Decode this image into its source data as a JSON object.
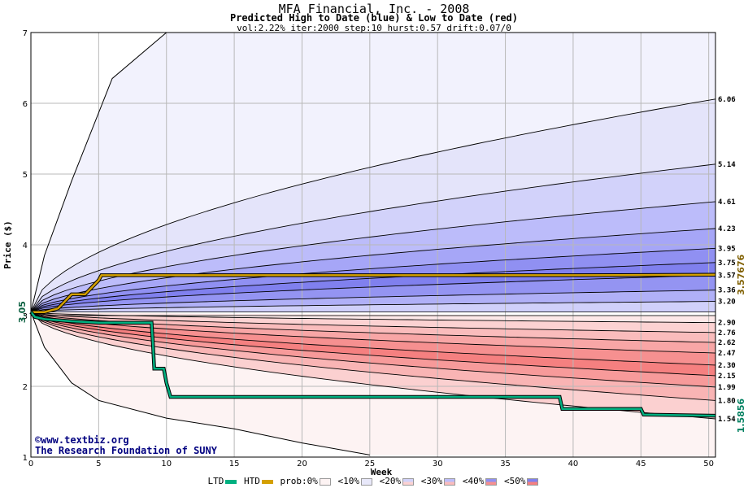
{
  "titles": {
    "main": "MFA Financial, Inc. - 2008",
    "sub": "Predicted High to Date (blue) &  Low to Date (red)",
    "params": "vol:2.22% iter:2000 step:10 hurst:0.57 drift:0.07/0"
  },
  "credits": {
    "line1": "©www.textbiz.org",
    "line2": "The Research Foundation of SUNY"
  },
  "legend": {
    "ltd": "LTD",
    "htd": "HTD",
    "prob": "prob:0%",
    "p10": "<10%",
    "p20": "<20%",
    "p30": "<30%",
    "p40": "<40%",
    "p50": "<50%"
  },
  "chart_data": {
    "type": "area",
    "title": "MFA Financial, Inc. - 2008",
    "xlabel": "Week",
    "ylabel": "Price ($)",
    "xlim": [
      0,
      50.5
    ],
    "ylim": [
      1,
      7
    ],
    "x_ticks": [
      0,
      5,
      10,
      15,
      20,
      25,
      30,
      35,
      40,
      45,
      50
    ],
    "y_ticks": [
      1,
      2,
      3,
      4,
      5,
      6,
      7
    ],
    "grid": true,
    "start_price": "3.05",
    "start_price_value": 3.05,
    "right_labels": {
      "htd_final": "3.57676",
      "ltd_final": "1.5856"
    },
    "high_quantiles": [
      {
        "label": "6.06",
        "final": 6.06
      },
      {
        "label": "5.14",
        "final": 5.14
      },
      {
        "label": "4.61",
        "final": 4.61
      },
      {
        "label": "4.23",
        "final": 4.23
      },
      {
        "label": "3.95",
        "final": 3.95
      },
      {
        "label": "3.75",
        "final": 3.75
      },
      {
        "label": "3.57",
        "final": 3.57
      },
      {
        "label": "3.36",
        "final": 3.36
      },
      {
        "label": "3.20",
        "final": 3.2
      }
    ],
    "low_quantiles": [
      {
        "label": "2.90",
        "final": 2.9
      },
      {
        "label": "2.76",
        "final": 2.76
      },
      {
        "label": "2.62",
        "final": 2.62
      },
      {
        "label": "2.47",
        "final": 2.47
      },
      {
        "label": "2.30",
        "final": 2.3
      },
      {
        "label": "2.15",
        "final": 2.15
      },
      {
        "label": "1.99",
        "final": 1.99
      },
      {
        "label": "1.80",
        "final": 1.8
      },
      {
        "label": "1.54",
        "final": 1.54
      }
    ],
    "high_envelope_points": [
      [
        0,
        3.05
      ],
      [
        1,
        3.85
      ],
      [
        3,
        4.9
      ],
      [
        6,
        6.35
      ],
      [
        10,
        7.0
      ]
    ],
    "low_envelope_points": [
      [
        0,
        3.05
      ],
      [
        1,
        2.55
      ],
      [
        3,
        2.05
      ],
      [
        5,
        1.8
      ],
      [
        10,
        1.55
      ],
      [
        15,
        1.4
      ],
      [
        20,
        1.2
      ],
      [
        25,
        1.03
      ]
    ],
    "band_colors": {
      "high": [
        "#e4e4fa",
        "#d2d2fa",
        "#bcbcfa",
        "#a6a6f7",
        "#9090f2",
        "#8080ee",
        "#9494f2",
        "#b0b0f7",
        "#d0d0fa"
      ],
      "low": [
        "#fde8e8",
        "#fcd2d2",
        "#fabcbc",
        "#f8a6a6",
        "#f69090",
        "#f58080",
        "#f79a9a",
        "#f9b4b4",
        "#fbd0d0"
      ],
      "high_outer": "#f2f2fd",
      "low_outer": "#fdf3f3"
    },
    "htd_series": {
      "name": "HTD",
      "color": "#d4a000",
      "points": [
        [
          0,
          3.05
        ],
        [
          1,
          3.05
        ],
        [
          2,
          3.1
        ],
        [
          2.5,
          3.2
        ],
        [
          3,
          3.3
        ],
        [
          4,
          3.3
        ],
        [
          4.5,
          3.4
        ],
        [
          5,
          3.5
        ],
        [
          5.2,
          3.57
        ],
        [
          10,
          3.57
        ],
        [
          20,
          3.57
        ],
        [
          30,
          3.57
        ],
        [
          40,
          3.57
        ],
        [
          50.5,
          3.577
        ]
      ]
    },
    "ltd_series": {
      "name": "LTD",
      "color": "#00b080",
      "points": [
        [
          0,
          3.05
        ],
        [
          0.3,
          2.98
        ],
        [
          1,
          2.95
        ],
        [
          3,
          2.92
        ],
        [
          5,
          2.9
        ],
        [
          8.9,
          2.9
        ],
        [
          9,
          2.6
        ],
        [
          9.1,
          2.25
        ],
        [
          9.8,
          2.25
        ],
        [
          10,
          2.05
        ],
        [
          10.3,
          1.85
        ],
        [
          15,
          1.85
        ],
        [
          20,
          1.85
        ],
        [
          25,
          1.85
        ],
        [
          30,
          1.85
        ],
        [
          35,
          1.85
        ],
        [
          39,
          1.85
        ],
        [
          39.2,
          1.68
        ],
        [
          45,
          1.68
        ],
        [
          45.2,
          1.6
        ],
        [
          50.5,
          1.585
        ]
      ]
    },
    "legend_items": [
      "LTD",
      "HTD",
      "prob:0%",
      "<10%",
      "<20%",
      "<30%",
      "<40%",
      "<50%"
    ]
  }
}
